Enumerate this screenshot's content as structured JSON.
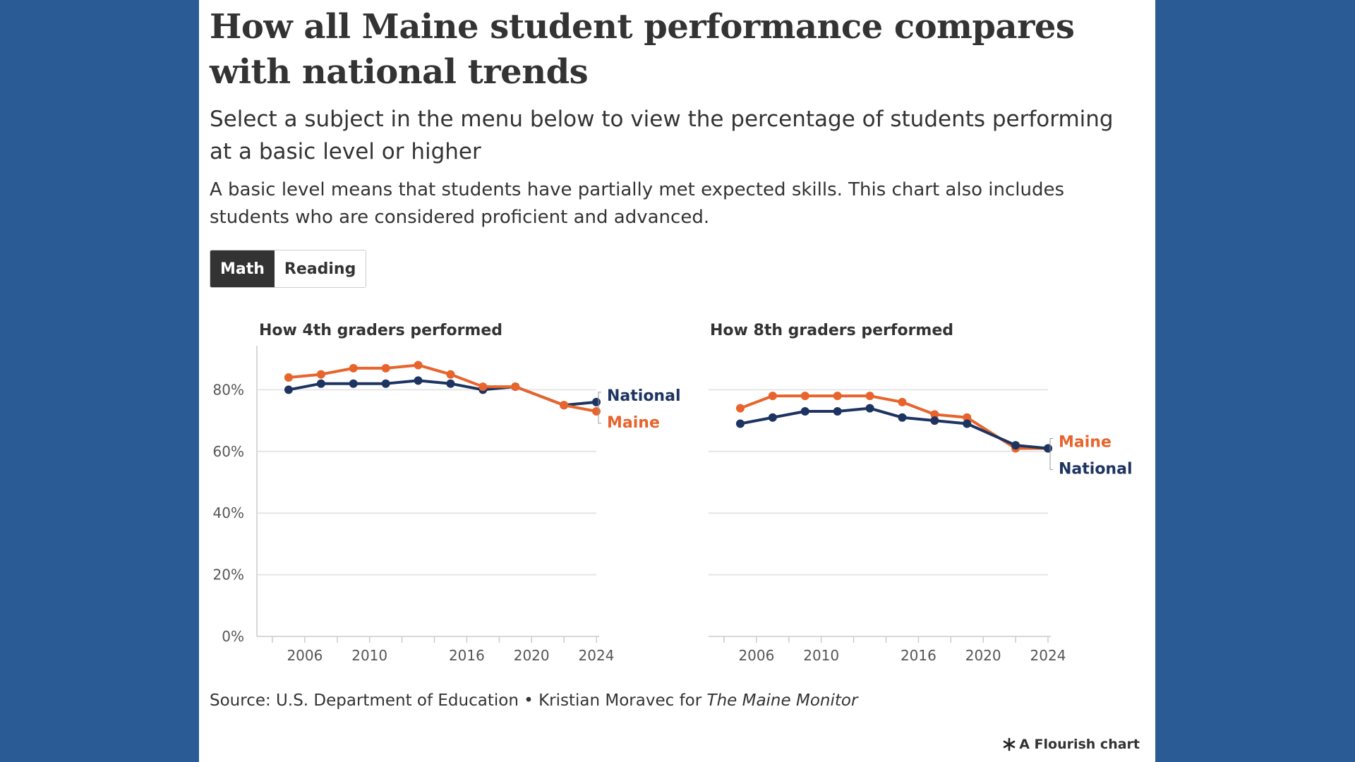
{
  "header": {
    "title": "How all Maine student performance compares with national trends",
    "subtitle": "Select a subject in the menu below to view the percentage of students performing at a basic level or higher",
    "note": "A basic level means that students have partially met expected skills. This chart also includes students who are considered proficient and advanced."
  },
  "controls": {
    "options": [
      "Math",
      "Reading"
    ],
    "selected": "Math"
  },
  "footer": {
    "source_prefix": "Source: U.S. Department of Education • Kristian Moravec for ",
    "source_publication": "The Maine Monitor",
    "credit": "A Flourish chart"
  },
  "colors": {
    "maine": "#e8642c",
    "national": "#1d3461",
    "grid": "#e6e6e6",
    "axis": "#cccccc",
    "text": "#333333",
    "background": "#2a5b95"
  },
  "chart_data": [
    {
      "type": "line",
      "title": "How 4th graders performed",
      "x": [
        2005,
        2007,
        2009,
        2011,
        2013,
        2015,
        2017,
        2019,
        2022,
        2024
      ],
      "xticks": [
        2006,
        2010,
        2016,
        2020,
        2024
      ],
      "xlim": [
        2004,
        2024
      ],
      "yticks": [
        0,
        20,
        40,
        60,
        80
      ],
      "ytick_labels": [
        "0%",
        "20%",
        "40%",
        "60%",
        "80%"
      ],
      "ylim": [
        0,
        92
      ],
      "grid": true,
      "series": [
        {
          "name": "National",
          "color": "#1d3461",
          "values": [
            80,
            82,
            82,
            82,
            83,
            82,
            80,
            81,
            75,
            76
          ]
        },
        {
          "name": "Maine",
          "color": "#e8642c",
          "values": [
            84,
            85,
            87,
            87,
            88,
            85,
            81,
            81,
            75,
            73
          ]
        }
      ]
    },
    {
      "type": "line",
      "title": "How 8th graders performed",
      "x": [
        2005,
        2007,
        2009,
        2011,
        2013,
        2015,
        2017,
        2019,
        2022,
        2024
      ],
      "xticks": [
        2006,
        2010,
        2016,
        2020,
        2024
      ],
      "xlim": [
        2004,
        2024
      ],
      "yticks": [
        0,
        20,
        40,
        60,
        80
      ],
      "ytick_labels": [
        "0%",
        "20%",
        "40%",
        "60%",
        "80%"
      ],
      "ylim": [
        0,
        92
      ],
      "grid": true,
      "series": [
        {
          "name": "Maine",
          "color": "#e8642c",
          "values": [
            74,
            78,
            78,
            78,
            78,
            76,
            72,
            71,
            61,
            61
          ]
        },
        {
          "name": "National",
          "color": "#1d3461",
          "values": [
            69,
            71,
            73,
            73,
            74,
            71,
            70,
            69,
            62,
            61
          ]
        }
      ]
    }
  ]
}
